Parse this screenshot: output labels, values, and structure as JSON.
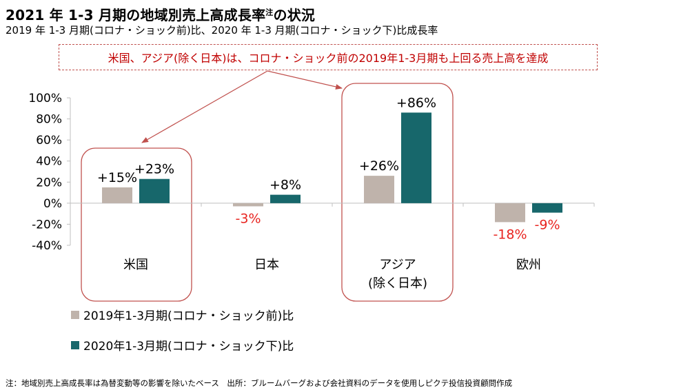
{
  "title": "2021 年 1-3 月期の地域別売上高成長率",
  "title_superscript": "注",
  "title_suffix": "の状況",
  "subtitle": "2019 年 1-3 月期(コロナ・ショック前)比、2020 年 1-3 月期(コロナ・ショック下)比成長率",
  "annotation": "米国、アジア(除く日本)は、コロナ・ショック前の2019年1-3月期も上回る売上高を達成",
  "footnote": "注：地域別売上高成長率は為替変動等の影響を除いたベース　出所：ブルームバーグおよび会社資料のデータを使用しピクテ投信投資顧問作成",
  "colors": {
    "series1": "#bfb3ab",
    "series2": "#17676b",
    "negative_label": "#e8231f",
    "highlight": "#c0504d",
    "axis": "#bfbfbf"
  },
  "chart_data": {
    "type": "bar",
    "categories": [
      "米国",
      "日本",
      "アジア",
      "欧州"
    ],
    "category_sublabels": [
      "",
      "",
      "(除く日本)",
      ""
    ],
    "series": [
      {
        "name": "2019年1-3月期(コロナ・ショック前)比",
        "values": [
          15,
          -3,
          26,
          -18
        ],
        "labels": [
          "+15%",
          "-3%",
          "+26%",
          "-18%"
        ]
      },
      {
        "name": "2020年1-3月期(コロナ・ショック下)比",
        "values": [
          23,
          8,
          86,
          -9
        ],
        "labels": [
          "+23%",
          "+8%",
          "+86%",
          "-9%"
        ]
      }
    ],
    "yticks": [
      100,
      80,
      60,
      40,
      20,
      0,
      -20,
      -40
    ],
    "ytick_labels": [
      "100%",
      "80%",
      "60%",
      "40%",
      "20%",
      "0%",
      "-20%",
      "-40%"
    ],
    "ylim": [
      -40,
      100
    ],
    "highlighted_categories": [
      "米国",
      "アジア"
    ]
  }
}
